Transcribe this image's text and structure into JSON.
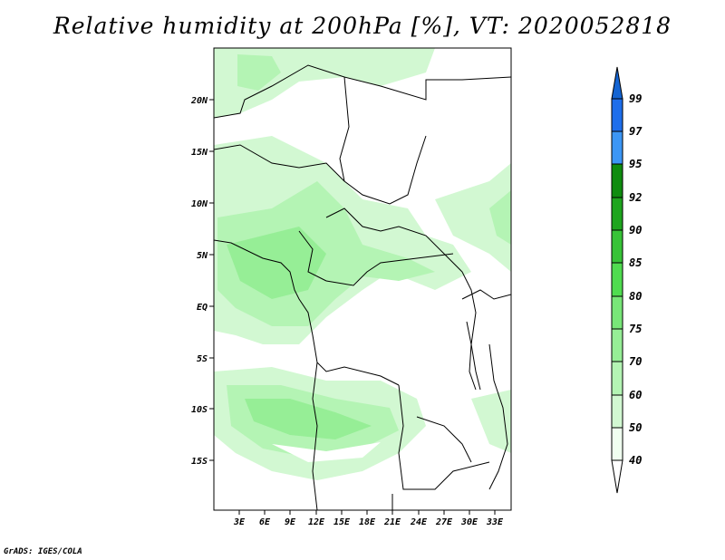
{
  "title": "Relative humidity at 200hPa [%], VT: 2020052818",
  "credit": "GrADS: IGES/COLA",
  "map": {
    "lat_labels": [
      "20N",
      "15N",
      "10N",
      "5N",
      "EQ",
      "5S",
      "10S",
      "15S"
    ],
    "lon_labels": [
      "3E",
      "6E",
      "9E",
      "12E",
      "15E",
      "18E",
      "21E",
      "24E",
      "27E",
      "30E",
      "33E"
    ]
  },
  "colorbar": {
    "labels": [
      "99",
      "97",
      "95",
      "92",
      "90",
      "85",
      "80",
      "75",
      "70",
      "60",
      "50",
      "40"
    ],
    "colors": [
      "#1464d2",
      "#1e6eeb",
      "#3c96f5",
      "#0f8c0f",
      "#1ea51e",
      "#37c337",
      "#50dc50",
      "#78e678",
      "#96ee96",
      "#b4f4b4",
      "#d2f8d2",
      "#f0fff0"
    ]
  }
}
